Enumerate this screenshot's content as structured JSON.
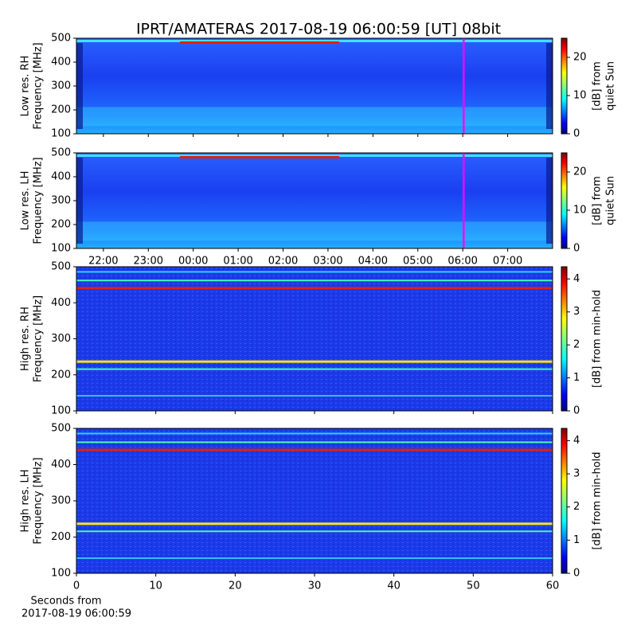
{
  "title": "IPRT/AMATERAS 2017-08-19 06:00:59 [UT]   08bit",
  "chart_data": [
    {
      "type": "heatmap",
      "ylabel": [
        "Low res. RH",
        "Frequency [MHz]"
      ],
      "ylim": [
        100,
        500
      ],
      "yticks": [
        100,
        200,
        300,
        400,
        500
      ],
      "xlim": [
        21.4,
        32.0
      ],
      "xticks": [
        22,
        23,
        24,
        25,
        26,
        27,
        28,
        29,
        30,
        31
      ],
      "xtick_labels": false,
      "marker": {
        "x": 30.02,
        "color": "#ff00ff"
      },
      "colorbar": {
        "label": [
          "[dB] from",
          "quiet Sun"
        ],
        "lim": [
          0,
          25
        ],
        "ticks": [
          0,
          10,
          20
        ],
        "colormap": "jet"
      }
    },
    {
      "type": "heatmap",
      "ylabel": [
        "Low res. LH",
        "Frequency [MHz]"
      ],
      "ylim": [
        100,
        500
      ],
      "yticks": [
        100,
        200,
        300,
        400,
        500
      ],
      "xlim": [
        21.4,
        32.0
      ],
      "xticks": [
        {
          "value": 22,
          "label": "22:00"
        },
        {
          "value": 23,
          "label": "23:00"
        },
        {
          "value": 24,
          "label": "00:00"
        },
        {
          "value": 25,
          "label": "01:00"
        },
        {
          "value": 26,
          "label": "02:00"
        },
        {
          "value": 27,
          "label": "03:00"
        },
        {
          "value": 28,
          "label": "04:00"
        },
        {
          "value": 29,
          "label": "05:00"
        },
        {
          "value": 30,
          "label": "06:00"
        },
        {
          "value": 31,
          "label": "07:00"
        }
      ],
      "xtick_labels": true,
      "marker": {
        "x": 30.02,
        "color": "#ff00ff"
      },
      "colorbar": {
        "label": [
          "[dB] from",
          "quiet Sun"
        ],
        "lim": [
          0,
          25
        ],
        "ticks": [
          0,
          10,
          20
        ],
        "colormap": "jet"
      }
    },
    {
      "type": "heatmap",
      "ylabel": [
        "High res. RH",
        "Frequency [MHz]"
      ],
      "ylim": [
        100,
        500
      ],
      "yticks": [
        100,
        200,
        300,
        400,
        500
      ],
      "xlim": [
        0,
        60
      ],
      "xticks": [
        0,
        10,
        20,
        30,
        40,
        50,
        60
      ],
      "xtick_labels": false,
      "colorbar": {
        "label": [
          "[dB] from min-hold"
        ],
        "lim": [
          0,
          4.37
        ],
        "ticks": [
          0,
          1,
          2,
          3,
          4
        ],
        "colormap": "jet"
      }
    },
    {
      "type": "heatmap",
      "ylabel": [
        "High res. LH",
        "Frequency [MHz]"
      ],
      "ylim": [
        100,
        500
      ],
      "yticks": [
        100,
        200,
        300,
        400,
        500
      ],
      "xlim": [
        0,
        60
      ],
      "xticks": [
        0,
        10,
        20,
        30,
        40,
        50,
        60
      ],
      "xtick_labels": true,
      "xlabel": [
        "Seconds from",
        "2017-08-19 06:00:59"
      ],
      "colorbar": {
        "label": [
          "[dB] from min-hold"
        ],
        "lim": [
          0,
          4.37
        ],
        "ticks": [
          0,
          1,
          2,
          3,
          4
        ],
        "colormap": "jet"
      }
    }
  ]
}
